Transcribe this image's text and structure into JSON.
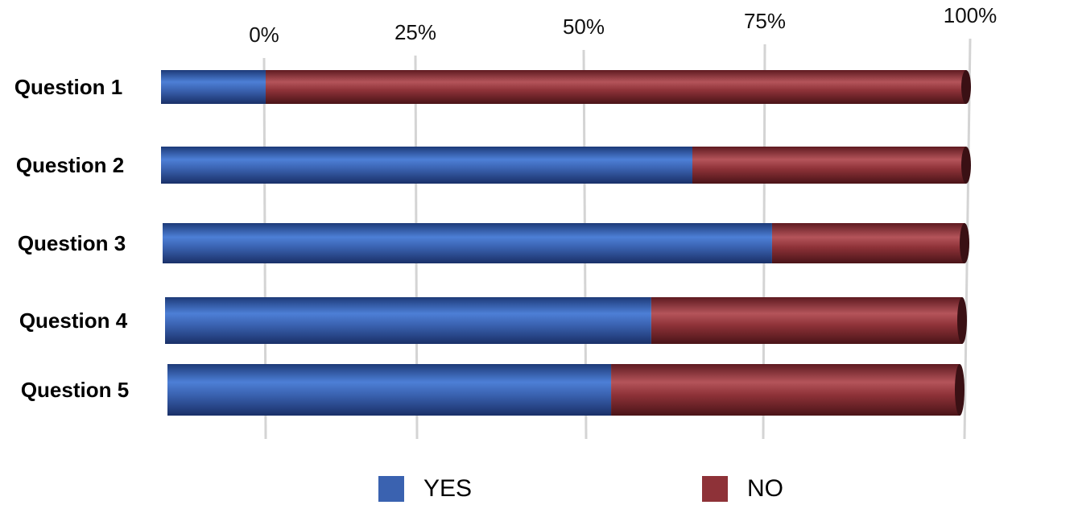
{
  "chart_data": {
    "type": "bar",
    "orientation": "horizontal",
    "stacked": "percent",
    "categories": [
      "Question 1",
      "Question 2",
      "Question 3",
      "Question 4",
      "Question 5"
    ],
    "series": [
      {
        "name": "YES",
        "color": "#3a62b0",
        "values": [
          13,
          66,
          76,
          61,
          56
        ]
      },
      {
        "name": "NO",
        "color": "#8e3238",
        "values": [
          87,
          34,
          24,
          39,
          44
        ]
      }
    ],
    "x_ticks": [
      "0%",
      "25%",
      "50%",
      "75%",
      "100%"
    ],
    "xlim": [
      0,
      100
    ],
    "grid": true,
    "legend_position": "bottom"
  }
}
